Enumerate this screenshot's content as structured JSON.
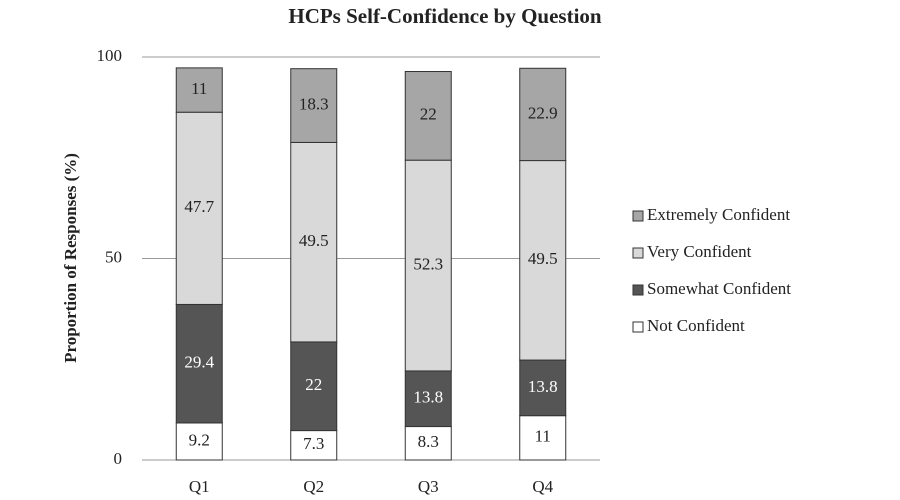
{
  "chart_data": {
    "type": "stacked_bar",
    "title": "HCPs Self-Confidence by Question",
    "y_label": "Proportion of Responses (%)",
    "categories": [
      "Q1",
      "Q2",
      "Q3",
      "Q4"
    ],
    "series": [
      {
        "name": "Not Confident",
        "color": "#ffffff",
        "values": [
          9.2,
          7.3,
          8.3,
          11
        ]
      },
      {
        "name": "Somewhat Confident",
        "color": "#555555",
        "values": [
          29.4,
          22,
          13.8,
          13.8
        ]
      },
      {
        "name": "Very Confident",
        "color": "#d9d9d9",
        "values": [
          47.7,
          49.5,
          52.3,
          49.5
        ]
      },
      {
        "name": "Extremely Confident",
        "color": "#a6a6a6",
        "values": [
          11,
          18.3,
          22,
          22.9
        ]
      }
    ],
    "ylim": [
      0,
      100
    ],
    "yticks": [
      0,
      50,
      100
    ],
    "grid": true,
    "legend": "right"
  }
}
